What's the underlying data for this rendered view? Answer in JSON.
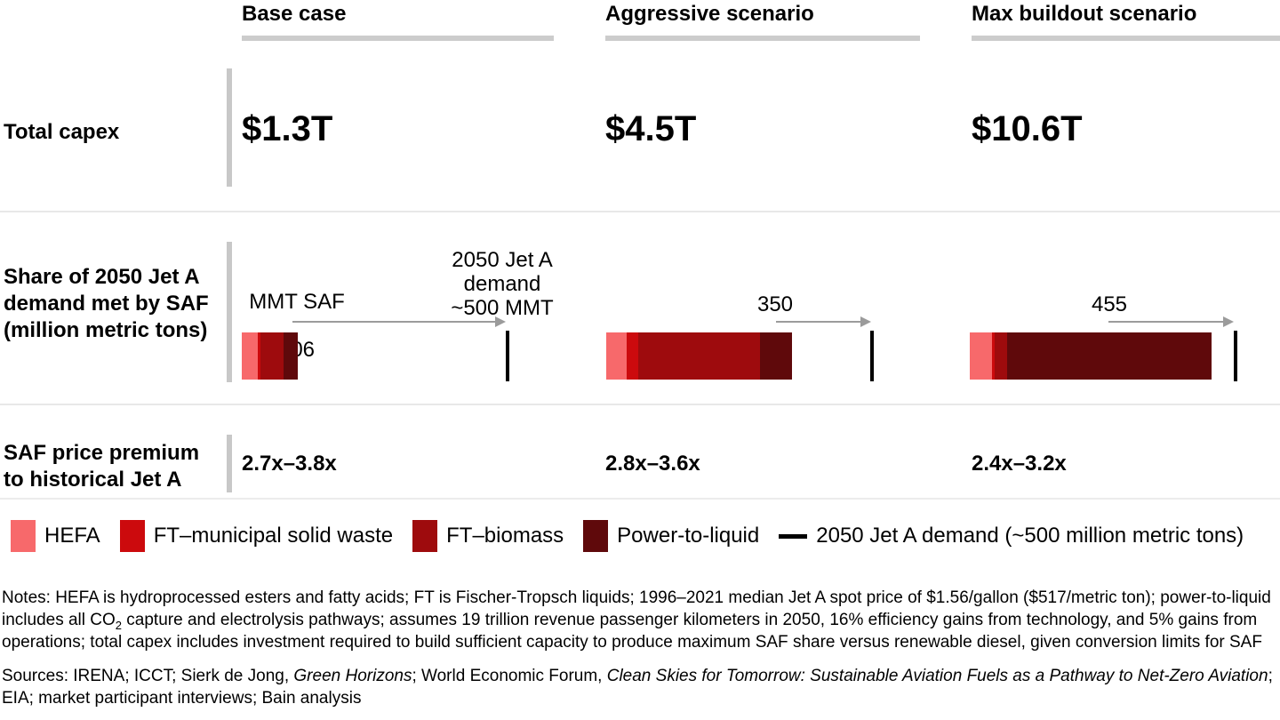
{
  "figure": {
    "row_labels": {
      "total_capex": "Total capex",
      "saf_share": "Share of 2050 Jet A\ndemand met by SAF\n(million metric tons)",
      "price_premium": "SAF price premium\nto historical Jet A"
    },
    "bar_axis_label": "MMT SAF",
    "demand_annotation": "2050 Jet A\ndemand\n~500 MMT"
  },
  "chart_data": {
    "type": "bar",
    "orientation": "horizontal-stacked",
    "unit": "million metric tons (MMT)",
    "xlim": [
      0,
      500
    ],
    "demand_marker_mmt": 500,
    "demand_line_label": "2050 Jet A demand (~500 million metric tons)",
    "series": [
      {
        "name": "HEFA",
        "color": "#f7696b"
      },
      {
        "name": "FT–municipal solid waste",
        "color": "#cc0a0d"
      },
      {
        "name": "FT–biomass",
        "color": "#9e0b0d"
      },
      {
        "name": "Power-to-liquid",
        "color": "#5f090b"
      }
    ],
    "scenarios": [
      {
        "name": "Base case",
        "total_capex": "$1.3T",
        "saf_mmt_total": 106,
        "saf_mmt_label": "106",
        "segments_mmt": [
          30,
          5,
          43,
          28
        ],
        "price_premium": "2.7x–3.8x"
      },
      {
        "name": "Aggressive scenario",
        "total_capex": "$4.5T",
        "saf_mmt_total": 350,
        "saf_mmt_label": "350",
        "segments_mmt": [
          38,
          22,
          230,
          60
        ],
        "price_premium": "2.8x–3.6x"
      },
      {
        "name": "Max buildout scenario",
        "total_capex": "$10.6T",
        "saf_mmt_total": 455,
        "saf_mmt_label": "455",
        "segments_mmt": [
          42,
          5,
          23,
          385
        ],
        "price_premium": "2.4x–3.2x"
      }
    ]
  },
  "notes_segments": [
    {
      "t": "Notes: HEFA is hydroprocessed esters and fatty acids; FT is Fischer-Tropsch liquids; 1996–2021 median Jet A spot price of $1.56/gallon ($517/metric ton); power-to-liquid includes all CO",
      "s": "n"
    },
    {
      "t": "2",
      "s": "sub"
    },
    {
      "t": " capture and electrolysis pathways; assumes 19 trillion revenue passenger kilometers in 2050, 16% efficiency gains from technology, and 5% gains from operations; total capex includes investment required to build sufficient capacity to produce maximum SAF share versus renewable diesel, given conversion limits for SAF",
      "s": "n"
    }
  ],
  "sources_segments": [
    {
      "t": "Sources: IRENA; ICCT; Sierk de Jong, ",
      "s": "n"
    },
    {
      "t": "Green Horizons",
      "s": "i"
    },
    {
      "t": "; World Economic Forum, ",
      "s": "n"
    },
    {
      "t": "Clean Skies for Tomorrow: Sustainable Aviation Fuels as a Pathway to Net-Zero Aviation",
      "s": "i"
    },
    {
      "t": "; EIA; market participant interviews; Bain analysis",
      "s": "n"
    }
  ]
}
